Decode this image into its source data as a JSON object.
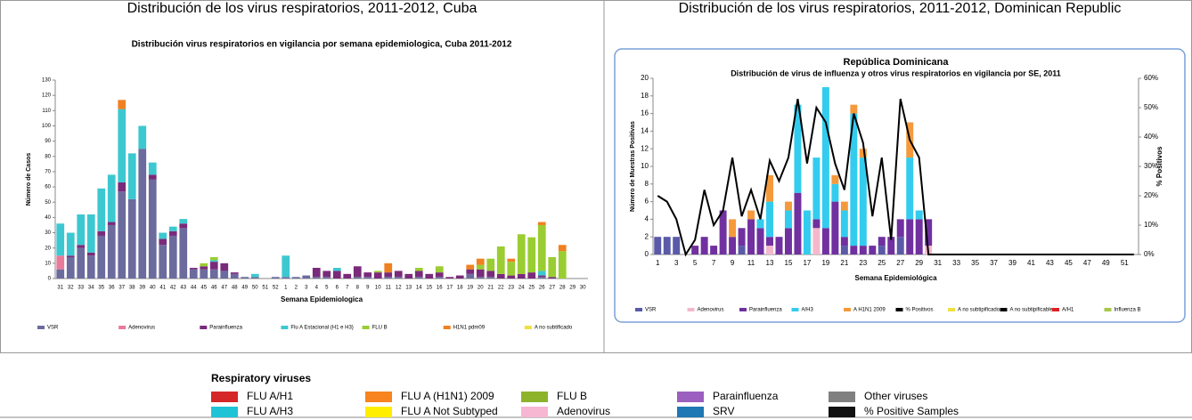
{
  "header": {
    "left": "Distribución de los virus respiratorios, 2011-2012, Cuba",
    "right": "Distribución de los virus respiratorios, 2011-2012, Dominican Republic"
  },
  "chart_data": [
    {
      "type": "stacked-bar",
      "title": "Distribución virus respiratorios en vigilancia por semana epidemiologica, Cuba 2011-2012",
      "ylabel": "Número de Casos",
      "xlabel": "Semana Epidemiologica",
      "categories": [
        31,
        32,
        33,
        34,
        35,
        36,
        37,
        38,
        39,
        40,
        41,
        42,
        43,
        44,
        45,
        46,
        47,
        48,
        49,
        50,
        51,
        52,
        1,
        2,
        3,
        4,
        5,
        6,
        7,
        8,
        9,
        10,
        11,
        12,
        13,
        14,
        15,
        16,
        17,
        18,
        19,
        20,
        21,
        22,
        23,
        24,
        25,
        26,
        27,
        28,
        29,
        30
      ],
      "ylim": [
        0,
        130
      ],
      "yticks": [
        0,
        10,
        20,
        30,
        40,
        50,
        60,
        70,
        80,
        90,
        100,
        110,
        120,
        130
      ],
      "series": [
        {
          "name": "VSR",
          "color": "#6b6b9e",
          "values": [
            6,
            14,
            20,
            15,
            28,
            35,
            57,
            52,
            85,
            65,
            22,
            28,
            33,
            6,
            6,
            6,
            5,
            3,
            1,
            1,
            0,
            1,
            1,
            1,
            2,
            1,
            1,
            0,
            0,
            1,
            1,
            0,
            1,
            1,
            0,
            1,
            0,
            1,
            0,
            0,
            3,
            1,
            1,
            0,
            0,
            0,
            0,
            1,
            0,
            0,
            0,
            0
          ]
        },
        {
          "name": "Adenovirus",
          "color": "#e87a9a",
          "values": [
            9,
            0,
            0,
            0,
            0,
            0,
            0,
            0,
            0,
            0,
            0,
            0,
            0,
            0,
            0,
            0,
            0,
            0,
            0,
            0,
            0,
            0,
            0,
            0,
            0,
            0,
            0,
            0,
            0,
            0,
            0,
            0,
            0,
            0,
            0,
            0,
            0,
            0,
            0,
            0,
            0,
            0,
            0,
            0,
            0,
            0,
            0,
            0,
            0,
            0,
            0,
            0
          ]
        },
        {
          "name": "Parainfluenza",
          "color": "#7a2a7a",
          "values": [
            0,
            1,
            2,
            2,
            3,
            2,
            6,
            0,
            0,
            3,
            4,
            3,
            3,
            1,
            2,
            5,
            5,
            1,
            0,
            0,
            0,
            0,
            0,
            0,
            0,
            6,
            4,
            5,
            3,
            7,
            3,
            4,
            3,
            4,
            3,
            4,
            3,
            3,
            1,
            2,
            3,
            5,
            4,
            3,
            2,
            3,
            4,
            1,
            1,
            0,
            0,
            0
          ]
        },
        {
          "name": "Flu A Estacional (H1 e H3)",
          "color": "#3cc8d0",
          "values": [
            21,
            15,
            20,
            25,
            28,
            31,
            48,
            30,
            15,
            8,
            4,
            3,
            3,
            0,
            0,
            1,
            0,
            0,
            0,
            2,
            0,
            0,
            14,
            0,
            0,
            0,
            0,
            2,
            0,
            0,
            0,
            0,
            0,
            0,
            0,
            0,
            0,
            0,
            0,
            0,
            0,
            0,
            0,
            0,
            0,
            0,
            0,
            3,
            0,
            0,
            0,
            0
          ]
        },
        {
          "name": "FLU B",
          "color": "#9acd32",
          "values": [
            0,
            0,
            0,
            0,
            0,
            0,
            0,
            0,
            0,
            0,
            0,
            0,
            0,
            0,
            2,
            2,
            0,
            0,
            0,
            0,
            0,
            0,
            0,
            0,
            0,
            0,
            0,
            0,
            0,
            0,
            0,
            1,
            0,
            0,
            0,
            2,
            0,
            4,
            0,
            0,
            0,
            3,
            8,
            18,
            9,
            26,
            23,
            30,
            13,
            18,
            0,
            0
          ]
        },
        {
          "name": "H1N1 pdm09",
          "color": "#f08020",
          "values": [
            0,
            0,
            0,
            0,
            0,
            0,
            6,
            0,
            0,
            0,
            0,
            0,
            0,
            0,
            0,
            0,
            0,
            0,
            0,
            0,
            0,
            0,
            0,
            0,
            0,
            0,
            0,
            0,
            0,
            0,
            0,
            0,
            6,
            0,
            0,
            0,
            0,
            0,
            0,
            0,
            3,
            4,
            0,
            0,
            2,
            0,
            0,
            2,
            0,
            4,
            0,
            0
          ]
        }
      ],
      "other_legend_entries": [
        {
          "name": "A no subtificado",
          "color": "#f0e040"
        }
      ]
    },
    {
      "type": "stacked-bar",
      "header": "República Dominicana",
      "title": "Distribución de virus de influenza y otros virus respiratorios en vigilancia por SE, 2011",
      "ylabel": "Número de Muestras Positivas",
      "y2label": "% Positivos",
      "xlabel": "Semana Epidemiológica",
      "categories": [
        1,
        null,
        3,
        null,
        5,
        null,
        7,
        null,
        9,
        null,
        11,
        null,
        13,
        null,
        15,
        null,
        17,
        null,
        19,
        null,
        21,
        null,
        23,
        null,
        25,
        null,
        27,
        null,
        29,
        null,
        31,
        null,
        33,
        null,
        35,
        null,
        37,
        null,
        39,
        null,
        41,
        null,
        43,
        null,
        45,
        null,
        47,
        null,
        49,
        null,
        51,
        null
      ],
      "ylim": [
        0,
        20
      ],
      "yticks": [
        0,
        2,
        4,
        6,
        8,
        10,
        12,
        14,
        16,
        18,
        20
      ],
      "y2lim": [
        0,
        60
      ],
      "y2ticks": [
        {
          "value": 0,
          "label": "0%"
        },
        {
          "value": 10,
          "label": "10%"
        },
        {
          "value": 20,
          "label": "20%"
        },
        {
          "value": 30,
          "label": "30%"
        },
        {
          "value": 40,
          "label": "40%"
        },
        {
          "value": 50,
          "label": "50%"
        },
        {
          "value": 60,
          "label": "60%"
        }
      ],
      "series": [
        {
          "name": "VSR",
          "color": "#5a5aa8",
          "values": [
            2,
            2,
            2,
            0,
            0,
            0,
            0,
            0,
            0,
            1,
            0,
            0,
            0,
            0,
            0,
            0,
            0,
            0,
            0,
            0,
            1,
            0,
            0,
            0,
            1,
            0,
            2,
            0,
            0,
            0,
            0,
            0,
            0,
            0,
            0,
            0,
            0,
            0,
            0,
            0,
            0,
            0,
            0,
            0,
            0,
            0,
            0,
            0,
            0,
            0,
            0,
            0
          ]
        },
        {
          "name": "Adenovirus",
          "color": "#f4b8cc",
          "values": [
            0,
            0,
            0,
            0,
            0,
            0,
            0,
            0,
            0,
            0,
            0,
            0,
            1,
            0,
            0,
            0,
            0,
            3,
            0,
            0,
            0,
            0,
            0,
            0,
            0,
            0,
            0,
            0,
            0,
            1,
            0,
            0,
            0,
            0,
            0,
            0,
            0,
            0,
            0,
            0,
            0,
            0,
            0,
            0,
            0,
            0,
            0,
            0,
            0,
            0,
            0,
            0
          ]
        },
        {
          "name": "Parainfluenza",
          "color": "#7030a0",
          "values": [
            0,
            0,
            0,
            0,
            1,
            2,
            1,
            5,
            2,
            2,
            4,
            3,
            1,
            2,
            3,
            7,
            0,
            1,
            3,
            6,
            1,
            1,
            1,
            1,
            1,
            2,
            2,
            4,
            4,
            3,
            0,
            0,
            0,
            0,
            0,
            0,
            0,
            0,
            0,
            0,
            0,
            0,
            0,
            0,
            0,
            0,
            0,
            0,
            0,
            0,
            0,
            0
          ]
        },
        {
          "name": "A/H3",
          "color": "#33ccee",
          "values": [
            0,
            0,
            0,
            0,
            0,
            0,
            0,
            0,
            0,
            0,
            0,
            1,
            4,
            0,
            2,
            10,
            5,
            7,
            16,
            2,
            3,
            15,
            10,
            0,
            0,
            0,
            0,
            7,
            1,
            0,
            0,
            0,
            0,
            0,
            0,
            0,
            0,
            0,
            0,
            0,
            0,
            0,
            0,
            0,
            0,
            0,
            0,
            0,
            0,
            0,
            0,
            0
          ]
        },
        {
          "name": "A H1N1 2009",
          "color": "#f59a3c",
          "values": [
            0,
            0,
            0,
            0,
            0,
            0,
            0,
            0,
            2,
            0,
            1,
            0,
            3,
            0,
            1,
            0,
            0,
            0,
            0,
            1,
            1,
            1,
            1,
            0,
            0,
            0,
            0,
            4,
            0,
            0,
            0,
            0,
            0,
            0,
            0,
            0,
            0,
            0,
            0,
            0,
            0,
            0,
            0,
            0,
            0,
            0,
            0,
            0,
            0,
            0,
            0,
            0
          ]
        },
        {
          "name": "% Positivos",
          "type": "line",
          "axis": "y2",
          "color": "#000000",
          "values": [
            20,
            18,
            12,
            0,
            5,
            22,
            10,
            15,
            33,
            13,
            22,
            12,
            32,
            25,
            33,
            53,
            31,
            50,
            45,
            31,
            22,
            48,
            38,
            13,
            33,
            5,
            53,
            39,
            33,
            0,
            0,
            0,
            0,
            0,
            0,
            0,
            0,
            0,
            0,
            0,
            0,
            0,
            0,
            0,
            0,
            0,
            0,
            0,
            0,
            0,
            0,
            0
          ]
        }
      ],
      "other_legend_entries": [
        {
          "name": "A no subtipificado",
          "color": "#f0e040"
        },
        {
          "name": "A no subtipificable",
          "color": "#000000"
        },
        {
          "name": "A/H1",
          "color": "#e02020"
        },
        {
          "name": "Influenza  B",
          "color": "#a8c84a"
        }
      ]
    }
  ],
  "legend": {
    "title": "Respiratory viruses",
    "items": [
      {
        "name": "FLU A/H1",
        "color": "#d62728"
      },
      {
        "name": "FLU A (H1N1) 2009",
        "color": "#f7841e"
      },
      {
        "name": "FLU B",
        "color": "#8db32b"
      },
      {
        "name": "Parainfluenza",
        "color": "#9b5fc0"
      },
      {
        "name": "Other viruses",
        "color": "#808080"
      },
      {
        "name": "FLU A/H3",
        "color": "#1fc3d6"
      },
      {
        "name": "FLU A Not Subtyped",
        "color": "#ffee00"
      },
      {
        "name": "Adenovirus",
        "color": "#f7b6d2"
      },
      {
        "name": "SRV",
        "color": "#1f77b4"
      },
      {
        "name": "% Positive Samples",
        "color": "#111111"
      }
    ]
  }
}
